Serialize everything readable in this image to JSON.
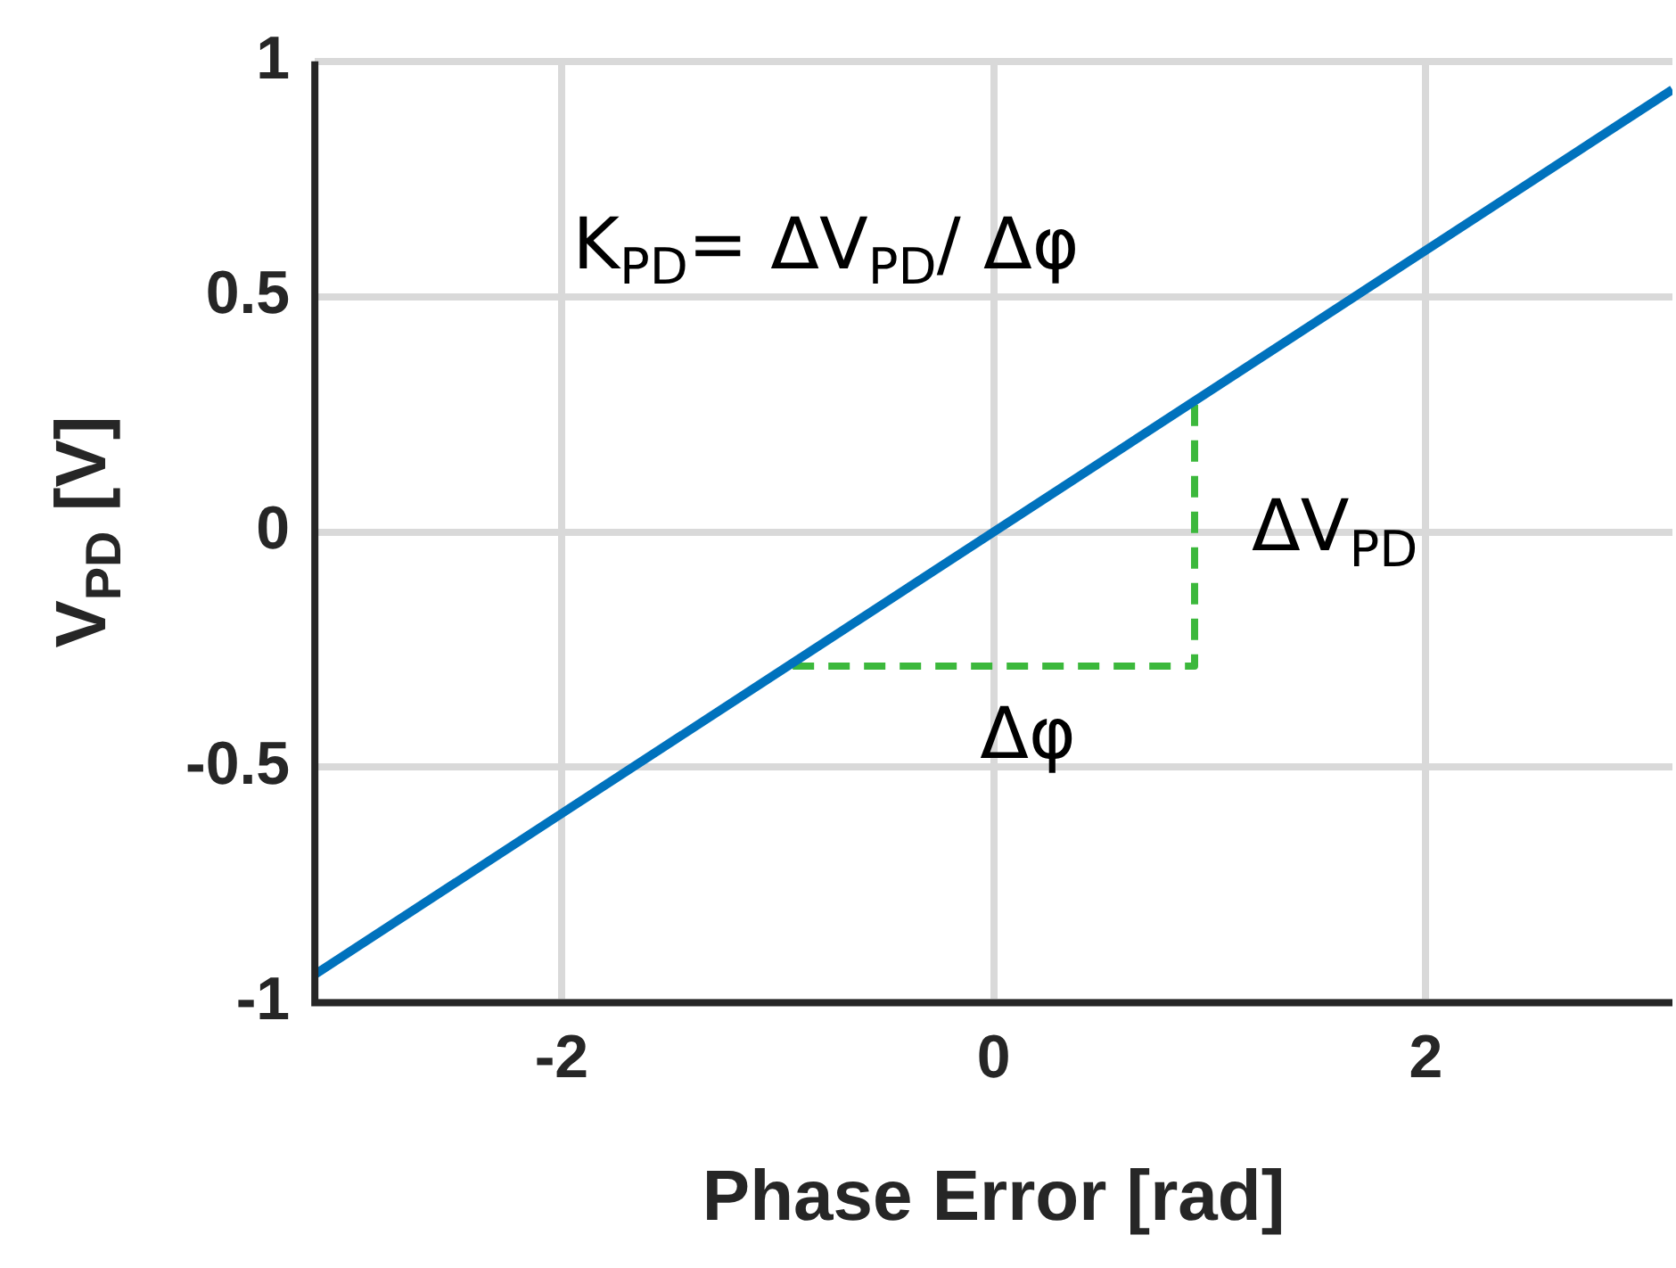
{
  "chart_data": {
    "type": "line",
    "xlabel": "Phase Error [rad]",
    "ylabel": "V$_{PD}$ [V]",
    "xlim": [
      -3.1416,
      3.1416
    ],
    "ylim": [
      -1,
      1
    ],
    "xticks": [
      -2,
      0,
      2
    ],
    "yticks": [
      -1,
      -0.5,
      0,
      0.5,
      1
    ],
    "grid": true,
    "marker": "none",
    "series": [
      {
        "color": "#0072bd",
        "x": [
          -3.1416,
          3.1416
        ],
        "values": [
          -0.94,
          0.94
        ],
        "line_style": "solid"
      },
      {
        "color": "#3cb83c",
        "x": [
          -0.93,
          0.93,
          0.93
        ],
        "values": [
          -0.285,
          -0.285,
          0.28
        ],
        "line_style": "dashed"
      }
    ],
    "annotations": [
      "K$_{PD}$= ΔV$_{PD}$/ Δφ",
      "ΔV$_{PD}$",
      "Δφ"
    ]
  }
}
